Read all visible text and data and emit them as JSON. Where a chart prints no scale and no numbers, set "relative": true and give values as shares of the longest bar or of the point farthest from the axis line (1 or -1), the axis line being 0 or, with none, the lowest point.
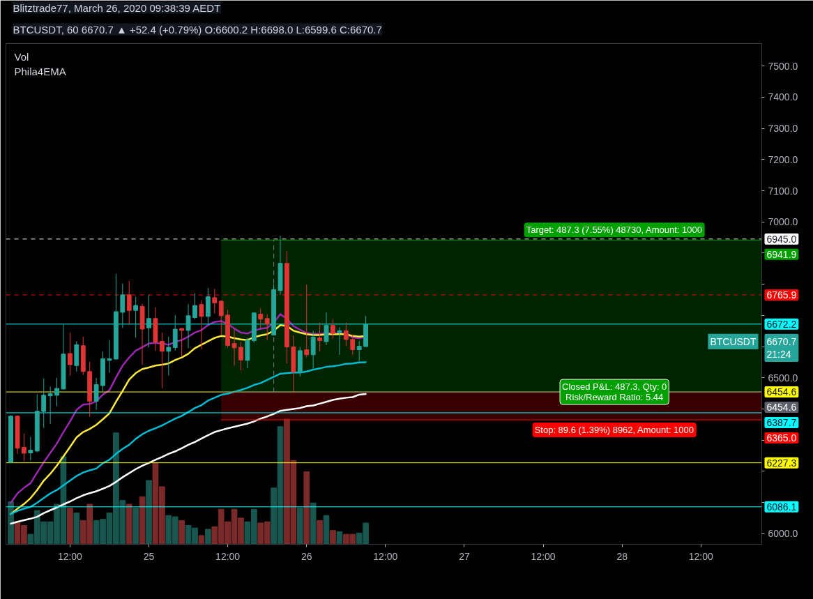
{
  "chart_data": [
    {
      "type": "candlestick",
      "title": "Blitztrade77, March 26, 2020 09:38:39 AEDT",
      "subtitle": "BTCUSDT, 60 6670.7 ▲ +52.4 (+0.79%) O:6600.2 H:6698.0 L:6599.6 C:6670.7",
      "x": [
        "2020-03-24T03:00",
        "2020-03-24T04:00",
        "2020-03-24T05:00",
        "2020-03-24T06:00",
        "2020-03-24T07:00",
        "2020-03-24T08:00",
        "2020-03-24T09:00",
        "2020-03-24T10:00",
        "2020-03-24T11:00",
        "2020-03-24T12:00",
        "2020-03-24T13:00",
        "2020-03-24T14:00",
        "2020-03-24T15:00",
        "2020-03-24T16:00",
        "2020-03-24T17:00",
        "2020-03-24T18:00",
        "2020-03-24T19:00",
        "2020-03-24T20:00",
        "2020-03-24T21:00",
        "2020-03-24T22:00",
        "2020-03-24T23:00",
        "2020-03-25T00:00",
        "2020-03-25T01:00",
        "2020-03-25T02:00",
        "2020-03-25T03:00",
        "2020-03-25T04:00",
        "2020-03-25T05:00",
        "2020-03-25T06:00",
        "2020-03-25T07:00",
        "2020-03-25T08:00",
        "2020-03-25T09:00",
        "2020-03-25T10:00",
        "2020-03-25T11:00",
        "2020-03-25T12:00",
        "2020-03-25T13:00",
        "2020-03-25T14:00",
        "2020-03-25T15:00",
        "2020-03-25T16:00",
        "2020-03-25T17:00",
        "2020-03-25T18:00",
        "2020-03-25T19:00",
        "2020-03-25T20:00",
        "2020-03-25T21:00",
        "2020-03-25T22:00",
        "2020-03-25T23:00",
        "2020-03-26T00:00",
        "2020-03-26T01:00",
        "2020-03-26T02:00",
        "2020-03-26T03:00",
        "2020-03-26T04:00",
        "2020-03-26T05:00",
        "2020-03-26T06:00",
        "2020-03-26T07:00",
        "2020-03-26T08:00",
        "2020-03-26T09:00"
      ],
      "xlim": [
        "2020-03-24T02:15",
        "2020-03-28T21:15"
      ],
      "xticks": [
        {
          "value": "2020-03-24T12:00",
          "label": "12:00"
        },
        {
          "value": "2020-03-25T00:00",
          "label": "25"
        },
        {
          "value": "2020-03-25T12:00",
          "label": "12:00"
        },
        {
          "value": "2020-03-26T00:00",
          "label": "26"
        },
        {
          "value": "2020-03-26T12:00",
          "label": "12:00"
        },
        {
          "value": "2020-03-27T00:00",
          "label": "27"
        },
        {
          "value": "2020-03-27T12:00",
          "label": "12:00"
        },
        {
          "value": "2020-03-28T00:00",
          "label": "28"
        },
        {
          "value": "2020-03-28T12:00",
          "label": "12:00"
        }
      ],
      "ylim": [
        5966,
        7572
      ],
      "yticks": [
        {
          "value": 6000,
          "label": "6000.0"
        },
        {
          "value": 6100,
          "label": null
        },
        {
          "value": 6200,
          "label": null
        },
        {
          "value": 6300,
          "label": null
        },
        {
          "value": 6400,
          "label": null
        },
        {
          "value": 6500,
          "label": "6500.0"
        },
        {
          "value": 6600,
          "label": null
        },
        {
          "value": 6700,
          "label": null
        },
        {
          "value": 6800,
          "label": null
        },
        {
          "value": 6900,
          "label": null
        },
        {
          "value": 7000,
          "label": "7000.0"
        },
        {
          "value": 7100,
          "label": "7100.0"
        },
        {
          "value": 7200,
          "label": "7200.0"
        },
        {
          "value": 7300,
          "label": "7300.0"
        },
        {
          "value": 7400,
          "label": "7400.0"
        },
        {
          "value": 7500,
          "label": "7500.0"
        }
      ],
      "series": [
        {
          "name": "BTCUSDT",
          "ohlc": [
            [
              6229,
              6380,
              6226,
              6377
            ],
            [
              6377,
              6380,
              6256,
              6274
            ],
            [
              6277,
              6321,
              6233,
              6258
            ],
            [
              6259,
              6310,
              6235,
              6268
            ],
            [
              6265,
              6447,
              6261,
              6393
            ],
            [
              6392,
              6498,
              6339,
              6444
            ],
            [
              6442,
              6472,
              6352,
              6449
            ],
            [
              6444,
              6500,
              6408,
              6466
            ],
            [
              6464,
              6671,
              6462,
              6576
            ],
            [
              6578,
              6645,
              6507,
              6542
            ],
            [
              6539,
              6617,
              6520,
              6606
            ],
            [
              6603,
              6632,
              6509,
              6520
            ],
            [
              6520,
              6551,
              6375,
              6425
            ],
            [
              6425,
              6500,
              6397,
              6478
            ],
            [
              6475,
              6584,
              6453,
              6561
            ],
            [
              6556,
              6621,
              6516,
              6561
            ],
            [
              6560,
              6833,
              6559,
              6712
            ],
            [
              6710,
              6802,
              6660,
              6766
            ],
            [
              6766,
              6811,
              6669,
              6716
            ],
            [
              6716,
              6760,
              6628,
              6732
            ],
            [
              6729,
              6738,
              6542,
              6656
            ],
            [
              6660,
              6766,
              6597,
              6690
            ],
            [
              6690,
              6726,
              6586,
              6615
            ],
            [
              6617,
              6645,
              6466,
              6585
            ],
            [
              6585,
              6632,
              6507,
              6598
            ],
            [
              6597,
              6701,
              6587,
              6656
            ],
            [
              6658,
              6660,
              6567,
              6652
            ],
            [
              6652,
              6736,
              6595,
              6699
            ],
            [
              6693,
              6771,
              6688,
              6732
            ],
            [
              6735,
              6749,
              6592,
              6697
            ],
            [
              6697,
              6788,
              6673,
              6760
            ],
            [
              6757,
              6785,
              6706,
              6740
            ],
            [
              6746,
              6748,
              6639,
              6699
            ],
            [
              6701,
              6719,
              6597,
              6604
            ],
            [
              6610,
              6654,
              6539,
              6596
            ],
            [
              6598,
              6615,
              6524,
              6557
            ],
            [
              6556,
              6628,
              6531,
              6621
            ],
            [
              6619,
              6710,
              6613,
              6708
            ],
            [
              6704,
              6722,
              6658,
              6688
            ],
            [
              6690,
              6704,
              6621,
              6672
            ],
            [
              6637,
              6801,
              6636,
              6783
            ],
            [
              6780,
              6956,
              6766,
              6867
            ],
            [
              6867,
              6906,
              6546,
              6599
            ],
            [
              6599,
              6636,
              6455,
              6519
            ],
            [
              6519,
              6599,
              6504,
              6587
            ],
            [
              6590,
              6800,
              6565,
              6574
            ],
            [
              6574,
              6651,
              6524,
              6630
            ],
            [
              6628,
              6677,
              6584,
              6619
            ],
            [
              6616,
              6710,
              6605,
              6668
            ],
            [
              6668,
              6686,
              6626,
              6642
            ],
            [
              6645,
              6662,
              6574,
              6651
            ],
            [
              6651,
              6677,
              6601,
              6623
            ],
            [
              6623,
              6640,
              6574,
              6590
            ],
            [
              6590,
              6617,
              6554,
              6601
            ],
            [
              6600.2,
              6698.0,
              6599.6,
              6670.7
            ]
          ],
          "colors": [
            "#26a69a",
            "#e03535",
            "#e03535",
            "#26a69a",
            "#26a69a",
            "#26a69a",
            "#26a69a",
            "#26a69a",
            "#26a69a",
            "#e03535",
            "#26a69a",
            "#e03535",
            "#e03535",
            "#26a69a",
            "#26a69a",
            "#26a69a",
            "#26a69a",
            "#26a69a",
            "#e03535",
            "#26a69a",
            "#e03535",
            "#26a69a",
            "#e03535",
            "#e03535",
            "#26a69a",
            "#26a69a",
            "#e03535",
            "#26a69a",
            "#26a69a",
            "#e03535",
            "#26a69a",
            "#e03535",
            "#e03535",
            "#e03535",
            "#e03535",
            "#e03535",
            "#26a69a",
            "#26a69a",
            "#e03535",
            "#e03535",
            "#26a69a",
            "#26a69a",
            "#e03535",
            "#e03535",
            "#26a69a",
            "#e03535",
            "#26a69a",
            "#e03535",
            "#26a69a",
            "#e03535",
            "#26a69a",
            "#e03535",
            "#e03535",
            "#26a69a",
            "#26a69a"
          ],
          "value_labels": [
            null,
            null,
            null,
            null,
            null,
            null,
            null,
            null,
            null,
            null,
            null,
            null,
            null,
            null,
            null,
            null,
            null,
            null,
            null,
            null,
            null,
            null,
            null,
            null,
            null,
            null,
            null,
            null,
            null,
            null,
            null,
            null,
            null,
            null,
            null,
            null,
            null,
            null,
            null,
            null,
            null,
            null,
            null,
            null,
            null,
            null,
            null,
            null,
            null,
            null,
            null,
            null,
            null,
            null,
            "6670.7\n21:24"
          ]
        },
        {
          "type": "line",
          "x": [
            "2020-03-25T11:00",
            "2020-03-28T21:15"
          ],
          "values": [
            6941.9,
            6941.9
          ],
          "lower": [
            6454.6,
            6454.6
          ],
          "upper": [
            6941.9,
            6941.9
          ],
          "color": "#00a000",
          "value_labels": [
            null,
            "6941.9"
          ]
        },
        {
          "type": "line",
          "x": [
            "2020-03-25T11:00",
            "2020-03-28T21:15"
          ],
          "values": [
            6365.0,
            6365.0
          ],
          "lower": [
            6365.0,
            6365.0
          ],
          "upper": [
            6454.6,
            6454.6
          ],
          "color": "#ff0000",
          "value_labels": [
            null,
            "6365.0"
          ]
        },
        {
          "type": "line",
          "x": [
            "2020-03-25T11:00",
            "2020-03-28T21:15"
          ],
          "values": [
            6454.6,
            6454.6
          ],
          "color": "#5d606b",
          "value_labels": [
            null,
            "6454.6"
          ]
        },
        {
          "type": "line",
          "x": [
            "2020-03-25T19:00",
            "2020-03-25T19:00"
          ],
          "values": [
            6454.6,
            6941.9
          ],
          "color": "#787b86",
          "line_style": "dashed"
        },
        {
          "type": "line",
          "color": "#9c27b0",
          "values": [
            6099,
            6129,
            6147,
            6162,
            6196,
            6229,
            6259,
            6289,
            6326,
            6360,
            6397,
            6414,
            6416,
            6425,
            6446,
            6460,
            6501,
            6539,
            6565,
            6587,
            6598,
            6610,
            6612,
            6610,
            6606,
            6615,
            6621,
            6632,
            6645,
            6653,
            6669,
            6679,
            6682,
            6673,
            6658,
            6645,
            6642,
            6651,
            6657,
            6660,
            6677,
            6704,
            6689,
            6666,
            6654,
            6643,
            6641,
            6641,
            6643,
            6643,
            6642,
            6640,
            6630,
            6627,
            6632
          ]
        },
        {
          "type": "line",
          "color": "#ffeb3b",
          "values": [
            6063,
            6080,
            6095,
            6114,
            6140,
            6170,
            6192,
            6218,
            6248,
            6278,
            6309,
            6326,
            6336,
            6349,
            6367,
            6386,
            6423,
            6458,
            6494,
            6515,
            6528,
            6533,
            6539,
            6542,
            6546,
            6557,
            6565,
            6577,
            6595,
            6606,
            6617,
            6628,
            6634,
            6632,
            6627,
            6623,
            6621,
            6630,
            6636,
            6640,
            6651,
            6669,
            6666,
            6651,
            6645,
            6640,
            6637,
            6637,
            6640,
            6640,
            6640,
            6640,
            6634,
            6632,
            6634
          ]
        },
        {
          "type": "line",
          "color": "#00bcd4",
          "values": [
            6063,
            6073,
            6080,
            6086,
            6099,
            6114,
            6129,
            6140,
            6155,
            6170,
            6185,
            6196,
            6203,
            6209,
            6226,
            6237,
            6256,
            6272,
            6285,
            6304,
            6319,
            6330,
            6338,
            6347,
            6358,
            6369,
            6378,
            6390,
            6403,
            6412,
            6427,
            6436,
            6445,
            6449,
            6455,
            6461,
            6468,
            6477,
            6483,
            6493,
            6503,
            6513,
            6515,
            6517,
            6517,
            6520,
            6526,
            6530,
            6535,
            6537,
            6540,
            6545,
            6546,
            6549,
            6550
          ]
        },
        {
          "type": "line",
          "color": "#ffffff",
          "values": [
            6032,
            6038,
            6043,
            6048,
            6054,
            6066,
            6075,
            6084,
            6094,
            6103,
            6114,
            6123,
            6130,
            6136,
            6144,
            6153,
            6166,
            6181,
            6194,
            6207,
            6218,
            6227,
            6237,
            6246,
            6256,
            6264,
            6274,
            6285,
            6294,
            6305,
            6316,
            6326,
            6332,
            6338,
            6343,
            6348,
            6353,
            6360,
            6369,
            6376,
            6384,
            6394,
            6397,
            6400,
            6403,
            6409,
            6411,
            6417,
            6423,
            6429,
            6433,
            6436,
            6438,
            6446,
            6448
          ]
        }
      ],
      "ref_lines": [
        {
          "axis": "y",
          "value": 6945.0,
          "label": "6945.0",
          "color": "#ffffff",
          "line_style": "dashed"
        },
        {
          "axis": "y",
          "value": 6765.9,
          "label": "6765.9",
          "color": "#ff0000",
          "line_style": "dashed"
        },
        {
          "axis": "y",
          "value": 6672.2,
          "label": "6672.2",
          "color": "#00ffff",
          "line_style": "solid"
        },
        {
          "axis": "y",
          "value": 6454.6,
          "label": "6454.6",
          "color": "#ffff00",
          "line_style": "solid"
        },
        {
          "axis": "y",
          "value": 6387.7,
          "label": "6387.7",
          "color": "#00ffff",
          "line_style": "solid"
        },
        {
          "axis": "y",
          "value": 6227.3,
          "label": "6227.3",
          "color": "#ffff00",
          "line_style": "solid"
        },
        {
          "axis": "y",
          "value": 6086.1,
          "label": "6086.1",
          "color": "#00ffff",
          "line_style": "solid"
        }
      ],
      "annotations": [
        "Vol",
        "Phila4EMA",
        {
          "text": "Target: 487.3 (7.55%) 48730, Amount: 1000",
          "x": "2020-03-27T22:50",
          "y": 6941.9
        },
        {
          "text": "Closed P&L: 487.3, Qty: 0\nRisk/Reward Ratio: 5.44",
          "x": "2020-03-27T22:50",
          "y": 6454.6
        },
        {
          "text": "Stop: 89.6 (1.39%) 8962, Amount: 1000",
          "x": "2020-03-27T22:50",
          "y": 6365.0
        }
      ]
    },
    {
      "type": "bar",
      "relative": true,
      "tick_labels": false,
      "x": [
        "2020-03-24T03:00",
        "2020-03-24T04:00",
        "2020-03-24T05:00",
        "2020-03-24T06:00",
        "2020-03-24T07:00",
        "2020-03-24T08:00",
        "2020-03-24T09:00",
        "2020-03-24T10:00",
        "2020-03-24T11:00",
        "2020-03-24T12:00",
        "2020-03-24T13:00",
        "2020-03-24T14:00",
        "2020-03-24T15:00",
        "2020-03-24T16:00",
        "2020-03-24T17:00",
        "2020-03-24T18:00",
        "2020-03-24T19:00",
        "2020-03-24T20:00",
        "2020-03-24T21:00",
        "2020-03-24T22:00",
        "2020-03-24T23:00",
        "2020-03-25T00:00",
        "2020-03-25T01:00",
        "2020-03-25T02:00",
        "2020-03-25T03:00",
        "2020-03-25T04:00",
        "2020-03-25T05:00",
        "2020-03-25T06:00",
        "2020-03-25T07:00",
        "2020-03-25T08:00",
        "2020-03-25T09:00",
        "2020-03-25T10:00",
        "2020-03-25T11:00",
        "2020-03-25T12:00",
        "2020-03-25T13:00",
        "2020-03-25T14:00",
        "2020-03-25T15:00",
        "2020-03-25T16:00",
        "2020-03-25T17:00",
        "2020-03-25T18:00",
        "2020-03-25T19:00",
        "2020-03-25T20:00",
        "2020-03-25T21:00",
        "2020-03-25T22:00",
        "2020-03-25T23:00",
        "2020-03-26T00:00",
        "2020-03-26T01:00",
        "2020-03-26T02:00",
        "2020-03-26T03:00",
        "2020-03-26T04:00",
        "2020-03-26T05:00",
        "2020-03-26T06:00",
        "2020-03-26T07:00",
        "2020-03-26T08:00",
        "2020-03-26T09:00"
      ],
      "xlim": [
        "2020-03-24T02:15",
        "2020-03-28T21:15"
      ],
      "values": [
        0.34,
        0.18,
        0.15,
        0.08,
        0.27,
        0.18,
        0.18,
        0.32,
        0.7,
        0.29,
        0.25,
        0.19,
        0.32,
        0.19,
        0.2,
        0.25,
        0.89,
        0.35,
        0.32,
        0.29,
        0.38,
        0.51,
        0.65,
        0.46,
        0.23,
        0.22,
        0.19,
        0.15,
        0.13,
        0.07,
        0.12,
        0.14,
        0.28,
        0.18,
        0.28,
        0.21,
        0.18,
        0.28,
        0.17,
        0.18,
        0.45,
        0.94,
        1,
        0.67,
        0.29,
        0.58,
        0.33,
        0.19,
        0.23,
        0.11,
        0.1,
        0.08,
        0.08,
        0.09,
        0.17
      ],
      "colors": [
        "#18564f",
        "#7b2a2a",
        "#7b2a2a",
        "#18564f",
        "#18564f",
        "#18564f",
        "#18564f",
        "#18564f",
        "#18564f",
        "#7b2a2a",
        "#18564f",
        "#7b2a2a",
        "#7b2a2a",
        "#18564f",
        "#18564f",
        "#18564f",
        "#18564f",
        "#18564f",
        "#7b2a2a",
        "#18564f",
        "#7b2a2a",
        "#18564f",
        "#7b2a2a",
        "#7b2a2a",
        "#18564f",
        "#18564f",
        "#7b2a2a",
        "#18564f",
        "#18564f",
        "#7b2a2a",
        "#18564f",
        "#7b2a2a",
        "#7b2a2a",
        "#7b2a2a",
        "#7b2a2a",
        "#7b2a2a",
        "#18564f",
        "#18564f",
        "#7b2a2a",
        "#7b2a2a",
        "#18564f",
        "#18564f",
        "#7b2a2a",
        "#7b2a2a",
        "#18564f",
        "#7b2a2a",
        "#18564f",
        "#7b2a2a",
        "#18564f",
        "#7b2a2a",
        "#18564f",
        "#7b2a2a",
        "#7b2a2a",
        "#18564f",
        "#18564f"
      ]
    }
  ]
}
